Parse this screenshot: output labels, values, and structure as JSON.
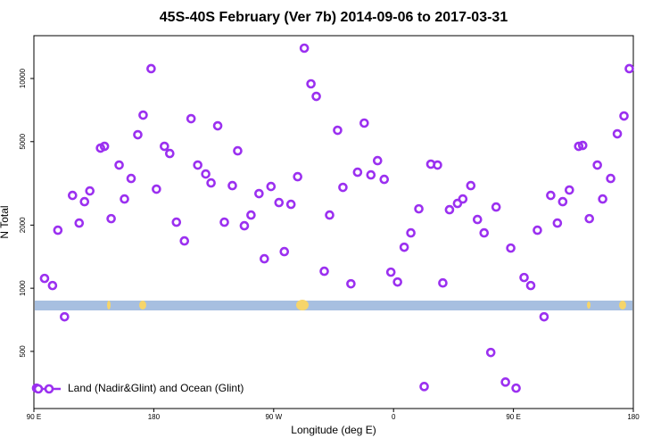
{
  "chart_data": {
    "type": "scatter",
    "title": "45S-40S February (Ver 7b)   2014-09-06 to 2017-03-31",
    "x_label": "Longitude (deg E)",
    "y_label": "N Total",
    "log_y": true,
    "legend": "bottom-left",
    "xlim": [
      90,
      540
    ],
    "xticks": [
      {
        "value": 90,
        "label": "90 E"
      },
      180,
      {
        "value": 270,
        "label": "90 W"
      },
      {
        "value": 360,
        "label": "0"
      },
      {
        "value": 450,
        "label": "90 E"
      },
      {
        "value": 540,
        "label": "180"
      }
    ],
    "ylim": [
      267,
      16000
    ],
    "yticks": [
      500,
      1000,
      2000,
      5000,
      10000
    ],
    "x": [
      92,
      98,
      104,
      108,
      113,
      119,
      124,
      128,
      132,
      140,
      143,
      148,
      154,
      158,
      163,
      168,
      172,
      178,
      182,
      188,
      192,
      197,
      203,
      208,
      213,
      219,
      223,
      228,
      233,
      239,
      243,
      248,
      253,
      259,
      263,
      268,
      274,
      278,
      283,
      288,
      293,
      298,
      302,
      308,
      312,
      318,
      322,
      328,
      333,
      338,
      343,
      348,
      353,
      358,
      363,
      368,
      373,
      379,
      383,
      388,
      393,
      397,
      402,
      408,
      412,
      418,
      423,
      428,
      433,
      437,
      444,
      448,
      452,
      458,
      463,
      468,
      473,
      478,
      483,
      487,
      492,
      499,
      502,
      507,
      513,
      517,
      523,
      528,
      533,
      537
    ],
    "series": [
      {
        "name": "Land (Nadir&Glint) and Ocean (Glint)",
        "color": "#9b30f0",
        "values": [
          334,
          1114,
          1030,
          1891,
          731,
          2771,
          2045,
          2587,
          2910,
          4658,
          4750,
          2147,
          3866,
          2664,
          3337,
          5395,
          6690,
          11140,
          2968,
          4750,
          4390,
          2065,
          1681,
          6434,
          3866,
          3505,
          3178,
          5950,
          2065,
          3086,
          4521,
          1986,
          2233,
          2826,
          1382,
          3056,
          2562,
          1495,
          2512,
          3403,
          13950,
          9430,
          8220,
          1205,
          2233,
          5665,
          3027,
          1050,
          3574,
          6128,
          3470,
          4059,
          3304,
          1193,
          1071,
          1569,
          1836,
          2391,
          340,
          3904,
          3866,
          1060,
          2368,
          2537,
          2664,
          3086,
          2127,
          1836,
          494,
          2439,
          357,
          1554,
          334,
          1125,
          1030,
          1891,
          731,
          2771,
          2045,
          2587,
          2939,
          4750,
          4797,
          2147,
          3866,
          2664,
          3337,
          5448,
          6627,
          11140
        ]
      }
    ]
  }
}
